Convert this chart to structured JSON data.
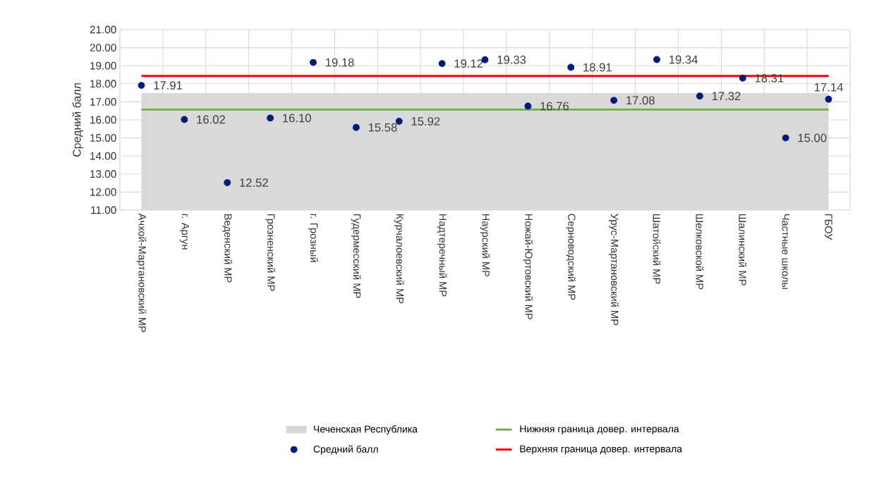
{
  "chart_data": {
    "type": "scatter",
    "ylabel": "Средний балл",
    "categories": [
      "Ачхой-Мартановский МР",
      "г. Аргун",
      "Веденский МР",
      "Грозненский МР",
      "г. Грозный",
      "Гудермесский МР",
      "Курчалоевский МР",
      "Надтеречный МР",
      "Наурский МР",
      "Ножай-Юртовский МР",
      "Серноводский МР",
      "Урус-Мартановский МР",
      "Шатойский МР",
      "Шелковской МР",
      "Шалинский МР",
      "Частные школы",
      "ГБОУ"
    ],
    "ylim": [
      11,
      21
    ],
    "yticks": [
      {
        "value": 11,
        "label": "11.00"
      },
      {
        "value": 12,
        "label": "12.00"
      },
      {
        "value": 13,
        "label": "13.00"
      },
      {
        "value": 14,
        "label": "14.00"
      },
      {
        "value": 15,
        "label": "15.00"
      },
      {
        "value": 16,
        "label": "16.00"
      },
      {
        "value": 17,
        "label": "17.00"
      },
      {
        "value": 18,
        "label": "18.00"
      },
      {
        "value": 19,
        "label": "19.00"
      },
      {
        "value": 20,
        "label": "20.00"
      },
      {
        "value": 21,
        "label": "21.00"
      }
    ],
    "grid": true,
    "legend": "bottom",
    "series": [
      {
        "name": "Чеченская Республика",
        "type": "area",
        "color": "#d9d9d9",
        "marker": "none",
        "values": [
          17.48,
          17.48,
          17.48,
          17.48,
          17.48,
          17.48,
          17.48,
          17.48,
          17.48,
          17.48,
          17.48,
          17.48,
          17.48,
          17.48,
          17.48,
          17.48,
          17.48
        ]
      },
      {
        "name": "Нижняя граница довер. интервала",
        "type": "line",
        "color": "#70ad47",
        "marker": "none",
        "values": [
          16.57,
          16.57,
          16.57,
          16.57,
          16.57,
          16.57,
          16.57,
          16.57,
          16.57,
          16.57,
          16.57,
          16.57,
          16.57,
          16.57,
          16.57,
          16.57,
          16.57
        ]
      },
      {
        "name": "Средний балл",
        "color": "#002060",
        "marker": "circle",
        "values": [
          17.91,
          16.02,
          12.52,
          16.1,
          19.18,
          15.58,
          15.92,
          19.12,
          19.33,
          16.76,
          18.91,
          17.08,
          19.34,
          17.32,
          18.31,
          15.0,
          17.14
        ],
        "value_labels": [
          "17.91",
          "16.02",
          "12.52",
          "16.10",
          "19.18",
          "15.58",
          "15.92",
          "19.12",
          "19.33",
          "16.76",
          "18.91",
          "17.08",
          "19.34",
          "17.32",
          "18.31",
          "15.00",
          "17.14"
        ]
      },
      {
        "name": "Верхняя граница довер. интервала",
        "type": "line",
        "color": "#ff0000",
        "marker": "none",
        "values": [
          18.43,
          18.43,
          18.43,
          18.43,
          18.43,
          18.43,
          18.43,
          18.43,
          18.43,
          18.43,
          18.43,
          18.43,
          18.43,
          18.43,
          18.43,
          18.43,
          18.43
        ]
      }
    ]
  }
}
